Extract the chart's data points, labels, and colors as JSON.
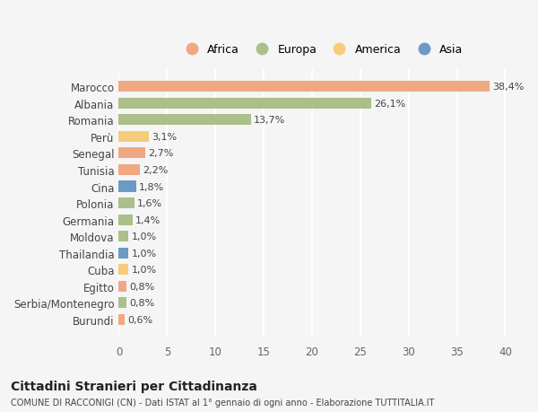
{
  "countries": [
    "Marocco",
    "Albania",
    "Romania",
    "Perù",
    "Senegal",
    "Tunisia",
    "Cina",
    "Polonia",
    "Germania",
    "Moldova",
    "Thailandia",
    "Cuba",
    "Egitto",
    "Serbia/Montenegro",
    "Burundi"
  ],
  "values": [
    38.4,
    26.1,
    13.7,
    3.1,
    2.7,
    2.2,
    1.8,
    1.6,
    1.4,
    1.0,
    1.0,
    1.0,
    0.8,
    0.8,
    0.6
  ],
  "labels": [
    "38,4%",
    "26,1%",
    "13,7%",
    "3,1%",
    "2,7%",
    "2,2%",
    "1,8%",
    "1,6%",
    "1,4%",
    "1,0%",
    "1,0%",
    "1,0%",
    "0,8%",
    "0,8%",
    "0,6%"
  ],
  "continents": [
    "Africa",
    "Europa",
    "Europa",
    "America",
    "Africa",
    "Africa",
    "Asia",
    "Europa",
    "Europa",
    "Europa",
    "Asia",
    "America",
    "Africa",
    "Europa",
    "Africa"
  ],
  "continent_colors": {
    "Africa": "#F0A882",
    "Europa": "#AABF8A",
    "America": "#F5CC7A",
    "Asia": "#6B9AC4"
  },
  "legend_order": [
    "Africa",
    "Europa",
    "America",
    "Asia"
  ],
  "legend_colors": [
    "#F0A882",
    "#AABF8A",
    "#F5CC7A",
    "#6B9AC4"
  ],
  "xlim": [
    0,
    42
  ],
  "xticks": [
    0,
    5,
    10,
    15,
    20,
    25,
    30,
    35,
    40
  ],
  "title": "Cittadini Stranieri per Cittadinanza",
  "subtitle": "COMUNE DI RACCONIGI (CN) - Dati ISTAT al 1° gennaio di ogni anno - Elaborazione TUTTITALIA.IT",
  "background_color": "#f5f5f5",
  "plot_bg_color": "#f5f5f5",
  "grid_color": "#ffffff",
  "bar_height": 0.65
}
